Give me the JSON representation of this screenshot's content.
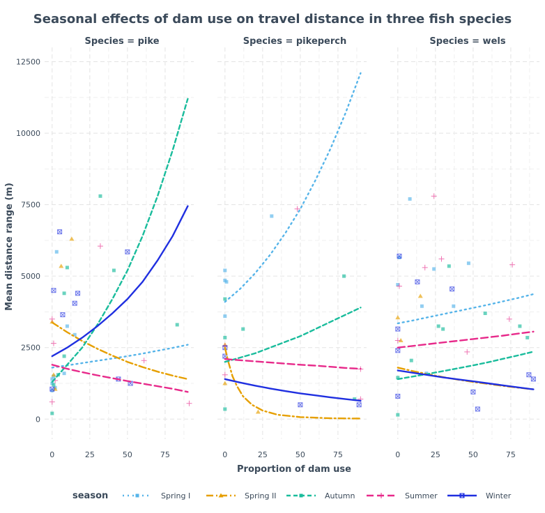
{
  "chart_data": {
    "type": "scatter",
    "title": "Seasonal effects of dam use on travel distance in three fish species",
    "xlabel": "Proportion of dam use",
    "ylabel": "Mean distance range (m)",
    "xlim": [
      -5,
      94
    ],
    "ylim": [
      -700,
      13000
    ],
    "x_ticks": [
      0,
      25,
      50,
      75
    ],
    "x_tick_labels": [
      "0",
      "25",
      "50",
      "75"
    ],
    "y_ticks": [
      0,
      2500,
      5000,
      7500,
      10000,
      12500
    ],
    "y_tick_labels": [
      "0",
      "2500",
      "5000",
      "7500",
      "10000",
      "12500"
    ],
    "grid": true,
    "legend_title": "season",
    "legend_position": "bottom",
    "series_styles": [
      {
        "name": "Spring I",
        "color": "#56B4E9",
        "dash": "2 5",
        "marker": "square"
      },
      {
        "name": "Spring II",
        "color": "#E69F00",
        "dash": "10 4 2 4",
        "marker": "triangle"
      },
      {
        "name": "Autumn",
        "color": "#1ABC9C",
        "dash": "6 4",
        "marker": "square"
      },
      {
        "name": "Summer",
        "color": "#E7298A",
        "dash": "10 5",
        "marker": "plus"
      },
      {
        "name": "Winter",
        "color": "#1F2FE0",
        "dash": "",
        "marker": "boxx"
      }
    ],
    "panels": [
      {
        "label": "Species = pike",
        "curves": [
          {
            "season": "Spring I",
            "x": [
              0,
              10,
              20,
              30,
              40,
              50,
              60,
              70,
              80,
              90
            ],
            "y": [
              1800,
              1880,
              1960,
              2040,
              2120,
              2200,
              2290,
              2390,
              2490,
              2600
            ]
          },
          {
            "season": "Spring II",
            "x": [
              0,
              10,
              20,
              30,
              40,
              50,
              60,
              70,
              80,
              90
            ],
            "y": [
              3380,
              3040,
              2730,
              2460,
              2220,
              2000,
              1820,
              1660,
              1520,
              1400
            ]
          },
          {
            "season": "Autumn",
            "x": [
              0,
              10,
              20,
              30,
              40,
              50,
              60,
              70,
              80,
              90
            ],
            "y": [
              1300,
              1900,
              2500,
              3300,
              4200,
              5200,
              6400,
              7800,
              9400,
              11200
            ]
          },
          {
            "season": "Summer",
            "x": [
              0,
              10,
              20,
              30,
              40,
              50,
              60,
              70,
              80,
              90
            ],
            "y": [
              1900,
              1760,
              1640,
              1530,
              1430,
              1330,
              1240,
              1150,
              1060,
              950
            ]
          },
          {
            "season": "Winter",
            "x": [
              0,
              10,
              20,
              30,
              40,
              50,
              60,
              70,
              80,
              90
            ],
            "y": [
              2200,
              2500,
              2850,
              3250,
              3700,
              4200,
              4800,
              5550,
              6400,
              7450
            ]
          }
        ],
        "points": [
          {
            "season": "Spring I",
            "x": [
              0,
              0,
              1,
              2,
              3,
              0,
              8,
              10,
              15
            ],
            "y": [
              1000,
              1400,
              1500,
              1100,
              5850,
              1250,
              1600,
              3250,
              2950
            ]
          },
          {
            "season": "Spring II",
            "x": [
              0,
              1,
              2,
              6,
              13
            ],
            "y": [
              3400,
              1550,
              1050,
              5350,
              6300
            ]
          },
          {
            "season": "Autumn",
            "x": [
              0,
              1,
              4,
              8,
              8,
              10,
              32,
              41,
              83
            ],
            "y": [
              200,
              1200,
              1550,
              2200,
              4400,
              5300,
              7800,
              5200,
              3300
            ]
          },
          {
            "season": "Summer",
            "x": [
              0,
              0,
              1,
              2,
              32,
              61,
              91
            ],
            "y": [
              3500,
              600,
              2650,
              1350,
              6050,
              2050,
              550
            ]
          },
          {
            "season": "Winter",
            "x": [
              0,
              1,
              5,
              7,
              15,
              17,
              44,
              50,
              52
            ],
            "y": [
              1050,
              4500,
              6550,
              3650,
              4050,
              4400,
              1400,
              5850,
              1250
            ]
          }
        ]
      },
      {
        "label": "Species = pikeperch",
        "curves": [
          {
            "season": "Spring I",
            "x": [
              0,
              10,
              20,
              30,
              40,
              50,
              60,
              70,
              80,
              90
            ],
            "y": [
              4100,
              4550,
              5100,
              5750,
              6500,
              7350,
              8350,
              9450,
              10700,
              12100
            ]
          },
          {
            "season": "Spring II",
            "x": [
              0,
              2,
              5,
              8,
              12,
              18,
              25,
              35,
              50,
              70,
              90
            ],
            "y": [
              2500,
              2050,
              1500,
              1150,
              800,
              500,
              300,
              150,
              70,
              30,
              20
            ]
          },
          {
            "season": "Autumn",
            "x": [
              0,
              10,
              20,
              30,
              40,
              50,
              60,
              70,
              80,
              90
            ],
            "y": [
              2000,
              2150,
              2300,
              2500,
              2700,
              2900,
              3150,
              3400,
              3650,
              3900
            ]
          },
          {
            "season": "Summer",
            "x": [
              0,
              10,
              20,
              30,
              40,
              50,
              60,
              70,
              80,
              90
            ],
            "y": [
              2100,
              2060,
              2020,
              1980,
              1940,
              1900,
              1870,
              1830,
              1790,
              1760
            ]
          },
          {
            "season": "Winter",
            "x": [
              0,
              10,
              20,
              30,
              40,
              50,
              60,
              70,
              80,
              90
            ],
            "y": [
              1400,
              1280,
              1170,
              1070,
              980,
              900,
              830,
              760,
              700,
              640
            ]
          }
        ],
        "points": [
          {
            "season": "Spring I",
            "x": [
              0,
              0,
              0,
              1,
              31
            ],
            "y": [
              5200,
              4850,
              3600,
              4800,
              7100
            ]
          },
          {
            "season": "Spring II",
            "x": [
              0,
              0,
              22
            ],
            "y": [
              2600,
              1250,
              250
            ]
          },
          {
            "season": "Autumn",
            "x": [
              0,
              0,
              0,
              12,
              79,
              86
            ],
            "y": [
              4200,
              2850,
              350,
              3150,
              5000,
              700
            ]
          },
          {
            "season": "Summer",
            "x": [
              0,
              0,
              48,
              90,
              90
            ],
            "y": [
              1550,
              2550,
              7350,
              1750,
              700
            ]
          },
          {
            "season": "Winter",
            "x": [
              0,
              0,
              50,
              89
            ],
            "y": [
              2500,
              2200,
              500,
              500
            ]
          }
        ]
      },
      {
        "label": "Species = wels",
        "curves": [
          {
            "season": "Spring I",
            "x": [
              0,
              10,
              20,
              30,
              40,
              50,
              60,
              70,
              80,
              90
            ],
            "y": [
              3350,
              3450,
              3560,
              3670,
              3780,
              3890,
              4000,
              4120,
              4240,
              4370
            ]
          },
          {
            "season": "Spring II",
            "x": [
              0,
              10,
              20,
              30,
              40,
              50,
              60,
              70,
              80,
              90
            ],
            "y": [
              1800,
              1680,
              1570,
              1470,
              1380,
              1300,
              1230,
              1160,
              1100,
              1040
            ]
          },
          {
            "season": "Autumn",
            "x": [
              0,
              10,
              20,
              30,
              40,
              50,
              60,
              70,
              80,
              90
            ],
            "y": [
              1400,
              1490,
              1580,
              1680,
              1780,
              1880,
              1990,
              2110,
              2230,
              2360
            ]
          },
          {
            "season": "Summer",
            "x": [
              0,
              10,
              20,
              30,
              40,
              50,
              60,
              70,
              80,
              90
            ],
            "y": [
              2500,
              2560,
              2620,
              2680,
              2740,
              2800,
              2860,
              2920,
              2990,
              3060
            ]
          },
          {
            "season": "Winter",
            "x": [
              0,
              10,
              20,
              30,
              40,
              50,
              60,
              70,
              80,
              90
            ],
            "y": [
              1700,
              1620,
              1540,
              1460,
              1390,
              1320,
              1250,
              1180,
              1110,
              1040
            ]
          }
        ],
        "points": [
          {
            "season": "Spring I",
            "x": [
              0,
              1,
              8,
              16,
              19,
              24,
              37,
              47
            ],
            "y": [
              4700,
              5650,
              7700,
              3950,
              1600,
              5250,
              3950,
              5450
            ]
          },
          {
            "season": "Spring II",
            "x": [
              0,
              2,
              15
            ],
            "y": [
              3550,
              2750,
              4300
            ]
          },
          {
            "season": "Autumn",
            "x": [
              0,
              0,
              9,
              27,
              30,
              34,
              58,
              81,
              86
            ],
            "y": [
              1450,
              150,
              2050,
              3250,
              3150,
              5350,
              3700,
              3250,
              2850
            ]
          },
          {
            "season": "Summer",
            "x": [
              0,
              1,
              18,
              24,
              29,
              46,
              74,
              76
            ],
            "y": [
              2750,
              4650,
              5300,
              7800,
              5600,
              2350,
              3500,
              5400
            ]
          },
          {
            "season": "Winter",
            "x": [
              0,
              0,
              0,
              1,
              13,
              36,
              50,
              53,
              87,
              90
            ],
            "y": [
              3150,
              2400,
              800,
              5700,
              4800,
              4550,
              950,
              350,
              1550,
              1400
            ]
          }
        ]
      }
    ]
  }
}
